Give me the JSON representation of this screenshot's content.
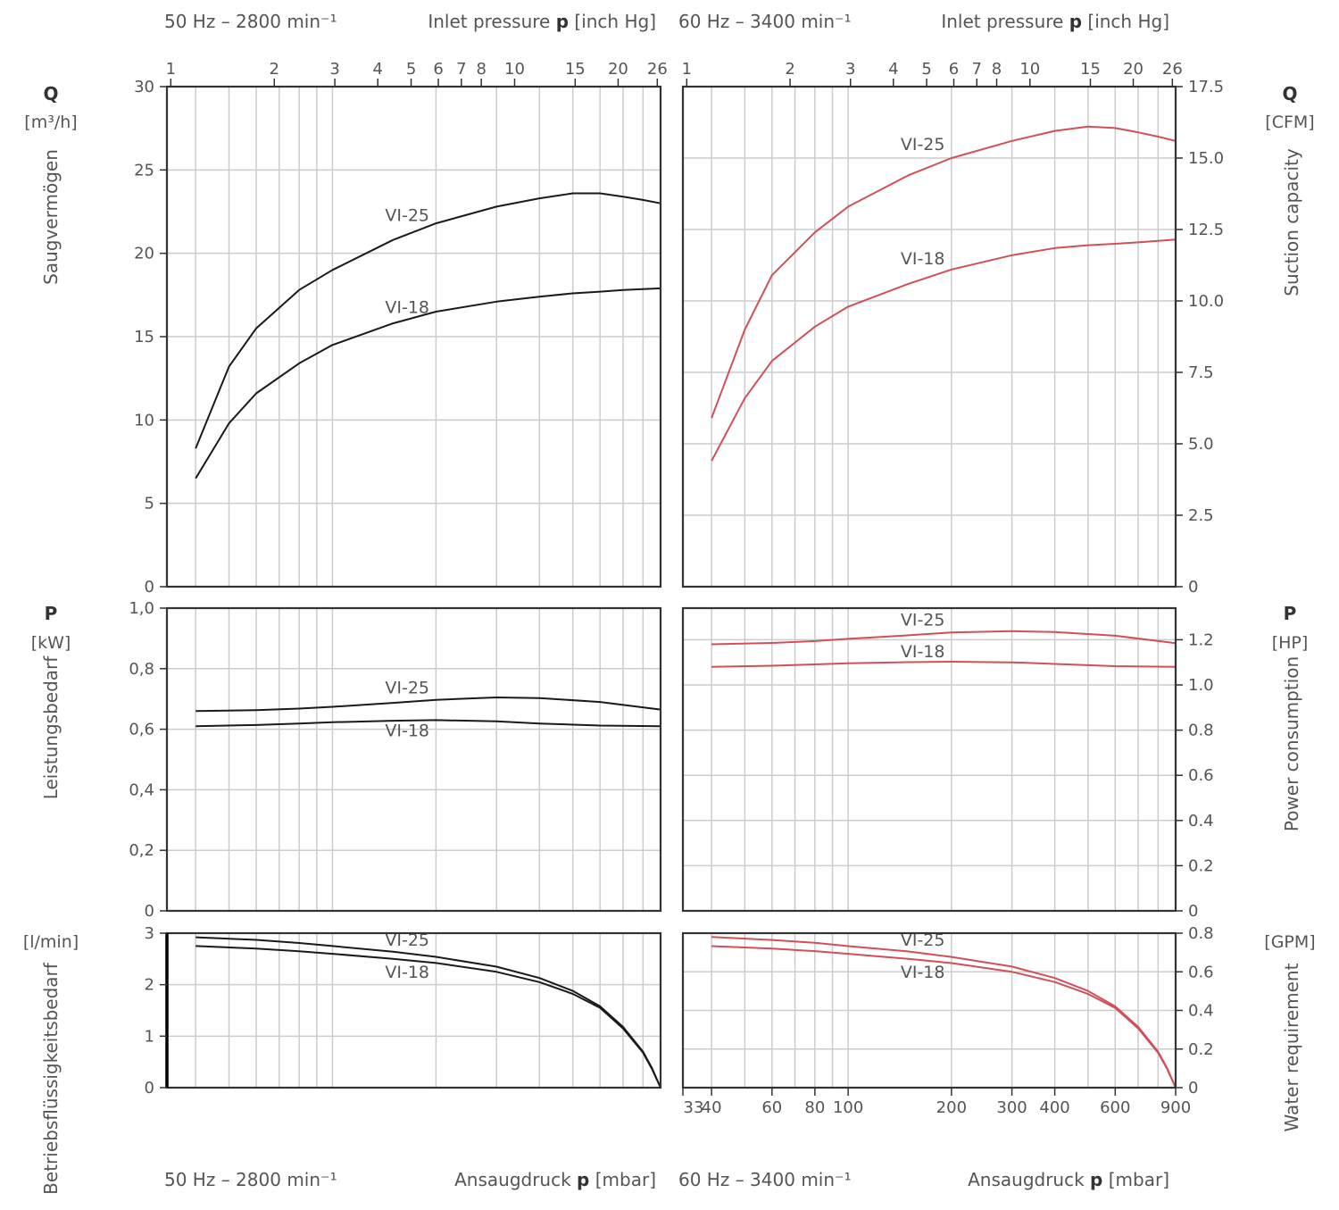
{
  "headers": {
    "left_top_freq": "50 Hz – 2800 min⁻¹",
    "left_top_axis_pre": "Inlet pressure ",
    "left_top_axis_bold": "p",
    "left_top_axis_post": " [inch Hg]",
    "right_top_freq": "60 Hz – 3400 min⁻¹",
    "right_top_axis_pre": "Inlet pressure ",
    "right_top_axis_bold": "p",
    "right_top_axis_post": " [inch Hg]",
    "left_bottom_freq": "50 Hz – 2800 min⁻¹",
    "left_bottom_axis_pre": "Ansaugdruck ",
    "left_bottom_axis_bold": "p",
    "left_bottom_axis_post": " [mbar]",
    "right_bottom_freq": "60 Hz – 3400 min⁻¹",
    "right_bottom_axis_pre": "Ansaugdruck ",
    "right_bottom_axis_bold": "p",
    "right_bottom_axis_post": " [mbar]"
  },
  "side_labels": {
    "q_symbol_left": "Q",
    "q_unit_left": "[m³/h]",
    "q_title_left": "Saugvermögen",
    "q_symbol_right": "Q",
    "q_unit_right": "[CFM]",
    "q_title_right": "Suction capacity",
    "p_symbol_left": "P",
    "p_unit_left": "[kW]",
    "p_title_left": "Leistungsbedarf",
    "p_symbol_right": "P",
    "p_unit_right": "[HP]",
    "p_title_right": "Power consumption",
    "w_unit_left": "[l/min]",
    "w_title_left": "Betriebsflüssigkeitsbedarf",
    "w_unit_right": "[GPM]",
    "w_title_right": "Water requirement"
  },
  "colors": {
    "series_50hz": "#1a1a1a",
    "series_60hz": "#d0505a",
    "grid": "#cccccc",
    "axis": "#333333"
  },
  "chart_data": [
    {
      "type": "line",
      "id": "q50",
      "xscale": "log",
      "xlim": [
        33,
        900
      ],
      "ylim": [
        0,
        30
      ],
      "y_ticks": [
        "0",
        "5",
        "10",
        "15",
        "20",
        "25",
        "30"
      ],
      "x_ticks": [
        "33",
        "40",
        "60",
        "80",
        "100",
        "200",
        "300",
        "400",
        "600",
        "900"
      ],
      "x2_ticks": [
        "1",
        "2",
        "3",
        "4",
        "5",
        "6",
        "7",
        "8",
        "10",
        "15",
        "20",
        "26"
      ],
      "series": [
        {
          "name": "VI-25",
          "x": [
            40,
            50,
            60,
            80,
            100,
            150,
            200,
            300,
            400,
            500,
            600,
            700,
            800,
            900
          ],
          "y": [
            8.3,
            13.2,
            15.5,
            17.8,
            19.0,
            20.8,
            21.8,
            22.8,
            23.3,
            23.6,
            23.6,
            23.4,
            23.2,
            23.0
          ]
        },
        {
          "name": "VI-18",
          "x": [
            40,
            50,
            60,
            80,
            100,
            150,
            200,
            300,
            400,
            500,
            600,
            700,
            800,
            900
          ],
          "y": [
            6.5,
            9.8,
            11.6,
            13.4,
            14.5,
            15.8,
            16.5,
            17.1,
            17.4,
            17.6,
            17.7,
            17.8,
            17.85,
            17.9
          ]
        }
      ]
    },
    {
      "type": "line",
      "id": "q60",
      "xscale": "log",
      "xlim": [
        33,
        900
      ],
      "ylim": [
        0,
        17.5
      ],
      "y_ticks": [
        "0",
        "2.5",
        "5.0",
        "7.5",
        "10.0",
        "12.5",
        "15.0",
        "17.5"
      ],
      "x_ticks": [
        "33",
        "40",
        "60",
        "80",
        "100",
        "200",
        "300",
        "400",
        "600",
        "900"
      ],
      "x2_ticks": [
        "1",
        "2",
        "3",
        "4",
        "5",
        "6",
        "7",
        "8",
        "10",
        "15",
        "20",
        "26"
      ],
      "series": [
        {
          "name": "VI-25",
          "x": [
            40,
            50,
            60,
            80,
            100,
            150,
            200,
            300,
            400,
            500,
            600,
            700,
            800,
            900
          ],
          "y": [
            5.9,
            9.0,
            10.9,
            12.4,
            13.3,
            14.4,
            15.0,
            15.6,
            15.95,
            16.1,
            16.05,
            15.9,
            15.75,
            15.6
          ]
        },
        {
          "name": "VI-18",
          "x": [
            40,
            50,
            60,
            80,
            100,
            150,
            200,
            300,
            400,
            500,
            600,
            700,
            800,
            900
          ],
          "y": [
            4.4,
            6.6,
            7.9,
            9.1,
            9.8,
            10.6,
            11.1,
            11.6,
            11.85,
            11.95,
            12.0,
            12.05,
            12.1,
            12.15
          ]
        }
      ]
    },
    {
      "type": "line",
      "id": "p50",
      "xscale": "log",
      "xlim": [
        33,
        900
      ],
      "ylim": [
        0,
        1.0
      ],
      "y_ticks": [
        "0",
        "0,2",
        "0,4",
        "0,6",
        "0,8",
        "1,0"
      ],
      "series": [
        {
          "name": "VI-25",
          "x": [
            40,
            60,
            80,
            100,
            150,
            200,
            300,
            400,
            600,
            900
          ],
          "y": [
            0.66,
            0.663,
            0.668,
            0.674,
            0.687,
            0.697,
            0.705,
            0.703,
            0.69,
            0.665
          ]
        },
        {
          "name": "VI-18",
          "x": [
            40,
            60,
            80,
            100,
            150,
            200,
            300,
            400,
            600,
            900
          ],
          "y": [
            0.61,
            0.614,
            0.619,
            0.623,
            0.628,
            0.63,
            0.626,
            0.619,
            0.612,
            0.61
          ]
        }
      ]
    },
    {
      "type": "line",
      "id": "p60",
      "xscale": "log",
      "xlim": [
        33,
        900
      ],
      "ylim": [
        0,
        1.34
      ],
      "y_ticks": [
        "0",
        "0.2",
        "0.4",
        "0.6",
        "0.8",
        "1.0",
        "1.2"
      ],
      "series": [
        {
          "name": "VI-25",
          "x": [
            40,
            60,
            80,
            100,
            150,
            200,
            300,
            400,
            600,
            900
          ],
          "y": [
            1.18,
            1.186,
            1.194,
            1.204,
            1.22,
            1.232,
            1.238,
            1.234,
            1.218,
            1.185
          ]
        },
        {
          "name": "VI-18",
          "x": [
            40,
            60,
            80,
            100,
            150,
            200,
            300,
            400,
            600,
            900
          ],
          "y": [
            1.08,
            1.085,
            1.091,
            1.096,
            1.101,
            1.103,
            1.1,
            1.093,
            1.083,
            1.08
          ]
        }
      ]
    },
    {
      "type": "line",
      "id": "w50",
      "xscale": "log",
      "xlim": [
        33,
        900
      ],
      "ylim": [
        0,
        3
      ],
      "y_ticks": [
        "0",
        "1",
        "2",
        "3"
      ],
      "series": [
        {
          "name": "VI-25",
          "x": [
            40,
            60,
            80,
            100,
            150,
            200,
            300,
            400,
            500,
            600,
            700,
            800,
            850,
            900
          ],
          "y": [
            2.92,
            2.87,
            2.81,
            2.75,
            2.64,
            2.54,
            2.35,
            2.13,
            1.88,
            1.58,
            1.18,
            0.7,
            0.38,
            0.0
          ]
        },
        {
          "name": "VI-18",
          "x": [
            40,
            60,
            80,
            100,
            150,
            200,
            300,
            400,
            500,
            600,
            700,
            800,
            850,
            900
          ],
          "y": [
            2.75,
            2.7,
            2.65,
            2.6,
            2.5,
            2.42,
            2.25,
            2.05,
            1.82,
            1.55,
            1.15,
            0.68,
            0.36,
            0.0
          ]
        }
      ]
    },
    {
      "type": "line",
      "id": "w60",
      "xscale": "log",
      "xlim": [
        33,
        900
      ],
      "ylim": [
        0,
        0.8
      ],
      "y_ticks": [
        "0",
        "0.2",
        "0.4",
        "0.6",
        "0.8"
      ],
      "x_ticks": [
        "33",
        "40",
        "60",
        "80",
        "100",
        "200",
        "300",
        "400",
        "600",
        "900"
      ],
      "series": [
        {
          "name": "VI-25",
          "x": [
            40,
            60,
            80,
            100,
            150,
            200,
            300,
            400,
            500,
            600,
            700,
            800,
            850,
            900
          ],
          "y": [
            0.78,
            0.765,
            0.75,
            0.733,
            0.705,
            0.677,
            0.627,
            0.568,
            0.501,
            0.421,
            0.315,
            0.187,
            0.101,
            0.0
          ]
        },
        {
          "name": "VI-18",
          "x": [
            40,
            60,
            80,
            100,
            150,
            200,
            300,
            400,
            500,
            600,
            700,
            800,
            850,
            900
          ],
          "y": [
            0.733,
            0.72,
            0.707,
            0.693,
            0.667,
            0.645,
            0.6,
            0.547,
            0.485,
            0.413,
            0.307,
            0.181,
            0.096,
            0.0
          ]
        }
      ]
    }
  ]
}
